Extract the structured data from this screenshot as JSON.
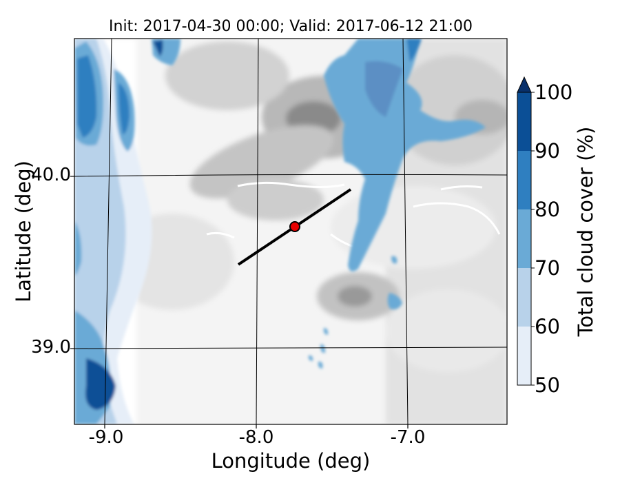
{
  "title": "Init: 2017-04-30 00:00; Valid: 2017-06-12 21:00",
  "axes": {
    "xlabel": "Longitude (deg)",
    "ylabel": "Latitude (deg)",
    "xticks": [
      "-9.0",
      "-8.0",
      "-7.0"
    ],
    "yticks": [
      "40.0",
      "39.0"
    ]
  },
  "colorbar": {
    "label": "Total cloud cover (%)",
    "ticks": [
      "50",
      "60",
      "70",
      "80",
      "90",
      "100"
    ],
    "levels": [
      50,
      60,
      70,
      80,
      90,
      100
    ],
    "colors": [
      "#e6eef8",
      "#b8d2ea",
      "#6aaad6",
      "#2f7fc0",
      "#0b4f96",
      "#08306b"
    ],
    "extend": "max"
  },
  "map": {
    "extent_lon": [
      -9.25,
      -6.35
    ],
    "extent_lat": [
      38.55,
      40.8
    ],
    "terrain": "grayscale",
    "cross_section_line": {
      "start": [
        -8.12,
        39.48
      ],
      "end": [
        -7.36,
        39.92
      ]
    },
    "point": {
      "lon": -7.75,
      "lat": 39.7,
      "color": "#e60000"
    }
  }
}
